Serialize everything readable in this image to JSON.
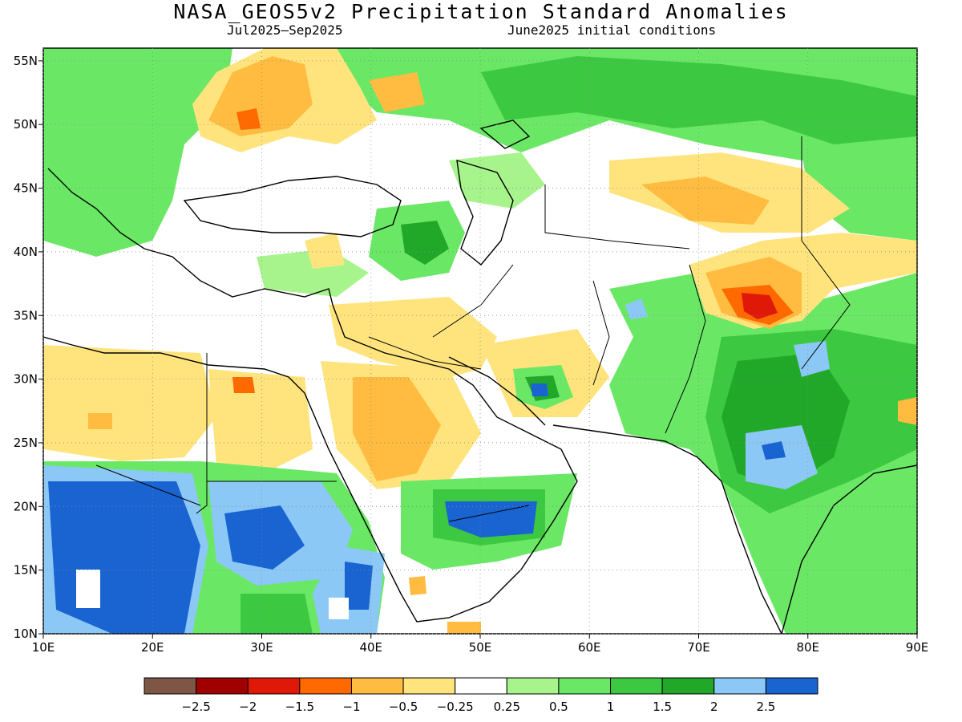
{
  "title": "NASA_GEOS5v2 Precipitation Standard Anomalies",
  "subtitle_left": "Jul2025–Sep2025",
  "subtitle_right": "June2025 initial conditions",
  "lat_ticks": [
    "55N",
    "50N",
    "45N",
    "40N",
    "35N",
    "30N",
    "25N",
    "20N",
    "15N",
    "10N"
  ],
  "lon_ticks": [
    "10E",
    "20E",
    "30E",
    "40E",
    "50E",
    "60E",
    "70E",
    "80E",
    "90E"
  ],
  "map": {
    "lon_range": [
      10,
      90
    ],
    "lat_range": [
      10,
      56
    ]
  },
  "colorbar": {
    "colors": [
      "#7f5545",
      "#a00000",
      "#e01808",
      "#ff6a00",
      "#ffbc40",
      "#ffe47e",
      "#ffffff",
      "#a8f48c",
      "#6ae865",
      "#3cc840",
      "#21a828",
      "#8cc8f5",
      "#1a64d2"
    ],
    "labels": [
      "−2.5",
      "−2",
      "−1.5",
      "−1",
      "−0.5",
      "−0.25",
      "0.25",
      "0.5",
      "1",
      "1.5",
      "2",
      "2.5"
    ]
  }
}
